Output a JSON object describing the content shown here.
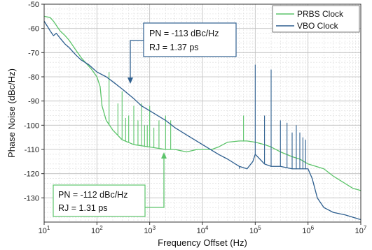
{
  "chart_data": {
    "type": "line",
    "title": "",
    "xlabel": "Frequency Offset (Hz)",
    "ylabel": "Phase Noise (dBc/Hz)",
    "xscale": "log",
    "xlim": [
      10,
      10000000
    ],
    "ylim": [
      -140,
      -50
    ],
    "x_ticks": [
      {
        "value": 10,
        "base": "10",
        "exp": "1"
      },
      {
        "value": 100,
        "base": "10",
        "exp": "2"
      },
      {
        "value": 1000,
        "base": "10",
        "exp": "3"
      },
      {
        "value": 10000,
        "base": "10",
        "exp": "4"
      },
      {
        "value": 100000,
        "base": "10",
        "exp": "5"
      },
      {
        "value": 1000000,
        "base": "10",
        "exp": "6"
      },
      {
        "value": 10000000,
        "base": "10",
        "exp": "7"
      }
    ],
    "y_ticks": [
      "-50",
      "-60",
      "-70",
      "-80",
      "-90",
      "-100",
      "-110",
      "-120",
      "-130"
    ],
    "grid": true,
    "legend_position": "top-right",
    "series": [
      {
        "name": "PRBS Clock",
        "color": "#5cc46a",
        "x": [
          10,
          13,
          15,
          20,
          25,
          30,
          40,
          50,
          60,
          80,
          100,
          115,
          125,
          150,
          200,
          300,
          500,
          1000,
          2000,
          3000,
          5000,
          8000,
          10000,
          15000,
          20000,
          30000,
          50000,
          70000,
          100000,
          150000,
          200000,
          300000,
          500000,
          700000,
          1000000,
          2000000,
          3000000,
          5000000,
          7000000,
          10000000
        ],
        "y": [
          -55,
          -55.5,
          -57,
          -61,
          -63,
          -65,
          -69,
          -72,
          -74,
          -77,
          -80,
          -84,
          -92,
          -98,
          -102,
          -106,
          -108,
          -109,
          -110,
          -110,
          -111,
          -110,
          -110,
          -110,
          -109,
          -107,
          -106.5,
          -106.5,
          -107,
          -108,
          -109,
          -111,
          -113,
          -114,
          -116,
          -118,
          -121,
          -124,
          -126,
          -127
        ],
        "spurs": [
          {
            "x": 170,
            "y": -78
          },
          {
            "x": 250,
            "y": -91
          },
          {
            "x": 300,
            "y": -86
          },
          {
            "x": 350,
            "y": -97
          },
          {
            "x": 400,
            "y": -96
          },
          {
            "x": 500,
            "y": -92
          },
          {
            "x": 600,
            "y": -98
          },
          {
            "x": 700,
            "y": -91
          },
          {
            "x": 800,
            "y": -100
          },
          {
            "x": 900,
            "y": -100
          },
          {
            "x": 1000,
            "y": -92
          },
          {
            "x": 1200,
            "y": -101
          },
          {
            "x": 1500,
            "y": -98
          },
          {
            "x": 2000,
            "y": -96
          },
          {
            "x": 2500,
            "y": -98
          },
          {
            "x": 60000,
            "y": -96
          }
        ]
      },
      {
        "name": "VBO Clock",
        "color": "#2e5f8f",
        "x": [
          10,
          13,
          15,
          17,
          20,
          25,
          30,
          40,
          50,
          70,
          100,
          150,
          200,
          300,
          500,
          700,
          1000,
          2000,
          3000,
          5000,
          10000,
          20000,
          30000,
          50000,
          70000,
          90000,
          100000,
          150000,
          200000,
          300000,
          500000,
          700000,
          1000000,
          1200000,
          1500000,
          2000000,
          3000000,
          5000000,
          10000000
        ],
        "y": [
          -57,
          -61,
          -63,
          -62,
          -64,
          -66.5,
          -68,
          -71,
          -73,
          -75,
          -78,
          -80,
          -82,
          -85,
          -89,
          -92,
          -94,
          -98,
          -101,
          -104,
          -108,
          -112,
          -114,
          -117,
          -118,
          -115,
          -112,
          -116,
          -117,
          -117,
          -118,
          -118,
          -118,
          -122,
          -130,
          -134,
          -136,
          -137,
          -139
        ],
        "spurs": [
          {
            "x": 100000,
            "y": -75
          },
          {
            "x": 150000,
            "y": -96
          },
          {
            "x": 200000,
            "y": -77
          },
          {
            "x": 300000,
            "y": -98
          },
          {
            "x": 400000,
            "y": -99
          },
          {
            "x": 500000,
            "y": -103
          },
          {
            "x": 600000,
            "y": -100
          },
          {
            "x": 700000,
            "y": -103
          },
          {
            "x": 800000,
            "y": -105
          },
          {
            "x": 900000,
            "y": -106
          },
          {
            "x": 50000,
            "y": -118
          }
        ]
      }
    ],
    "annotations": [
      {
        "name": "vbo",
        "line1": "PN = -113 dBc/Hz",
        "line2": "RJ = 1.37 ps",
        "color": "#2e5f8f"
      },
      {
        "name": "prbs",
        "line1": "PN = -112 dBc/Hz",
        "line2": "RJ = 1.31 ps",
        "color": "#5cc46a"
      }
    ]
  }
}
